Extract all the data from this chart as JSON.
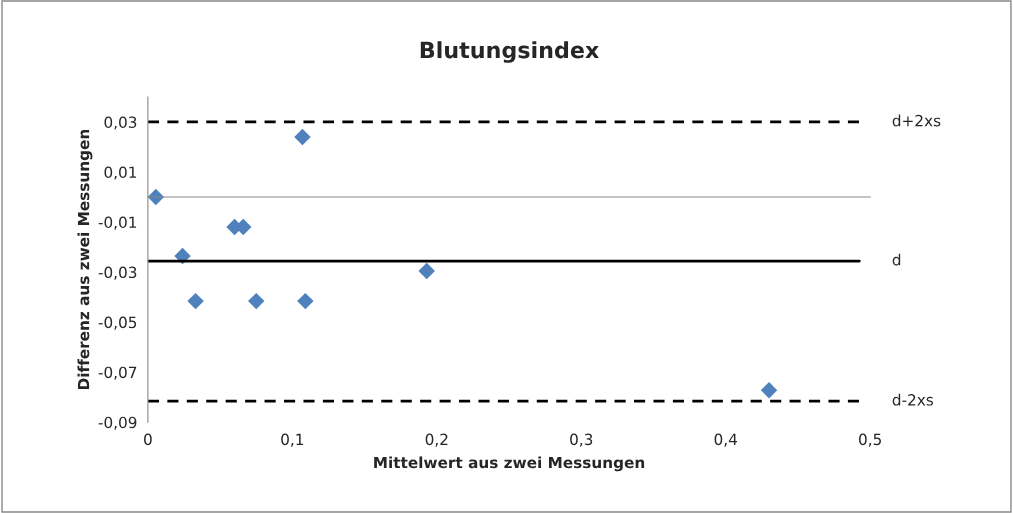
{
  "chart_data": {
    "type": "scatter",
    "title": "Blutungsindex",
    "xlabel": "Mittelwert aus zwei Messungen",
    "ylabel": "Differenz aus zwei Messungen",
    "x": [
      0.0055,
      0.024,
      0.033,
      0.06,
      0.066,
      0.075,
      0.107,
      0.109,
      0.193,
      0.43
    ],
    "series": [
      {
        "color": "#4f81bd",
        "values": [
          0.0,
          -0.0236,
          -0.0416,
          -0.012,
          -0.012,
          -0.0416,
          0.024,
          -0.0416,
          -0.0296,
          -0.0772
        ]
      }
    ],
    "marker": "diamond",
    "grid": false,
    "legend": false,
    "xlim": [
      0,
      0.5
    ],
    "ylim": [
      -0.09,
      0.04
    ],
    "xticks": [
      0,
      {
        "value": 0.1,
        "label": "0,1"
      },
      {
        "value": 0.2,
        "label": "0,2"
      },
      {
        "value": 0.3,
        "label": "0,3"
      },
      {
        "value": 0.4,
        "label": "0,4"
      },
      {
        "value": 0.5,
        "label": "0,5"
      }
    ],
    "yticks": [
      {
        "value": -0.09,
        "label": "-0,09"
      },
      {
        "value": -0.07,
        "label": "-0,07"
      },
      {
        "value": -0.05,
        "label": "-0,05"
      },
      {
        "value": -0.03,
        "label": "-0,03"
      },
      {
        "value": -0.01,
        "label": "-0,01"
      },
      {
        "value": 0.01,
        "label": "0,01"
      },
      {
        "value": 0.03,
        "label": "0,03"
      }
    ],
    "ref_lines": [
      {
        "axis": "y",
        "value": 0.03,
        "label": "d+2xs",
        "color": "#000000",
        "line_style": "dashed"
      },
      {
        "axis": "y",
        "value": -0.0256,
        "label": "d",
        "color": "#000000",
        "line_style": "solid"
      },
      {
        "axis": "y",
        "value": -0.0816,
        "label": "d-2xs",
        "color": "#000000",
        "line_style": "dashed"
      }
    ]
  }
}
